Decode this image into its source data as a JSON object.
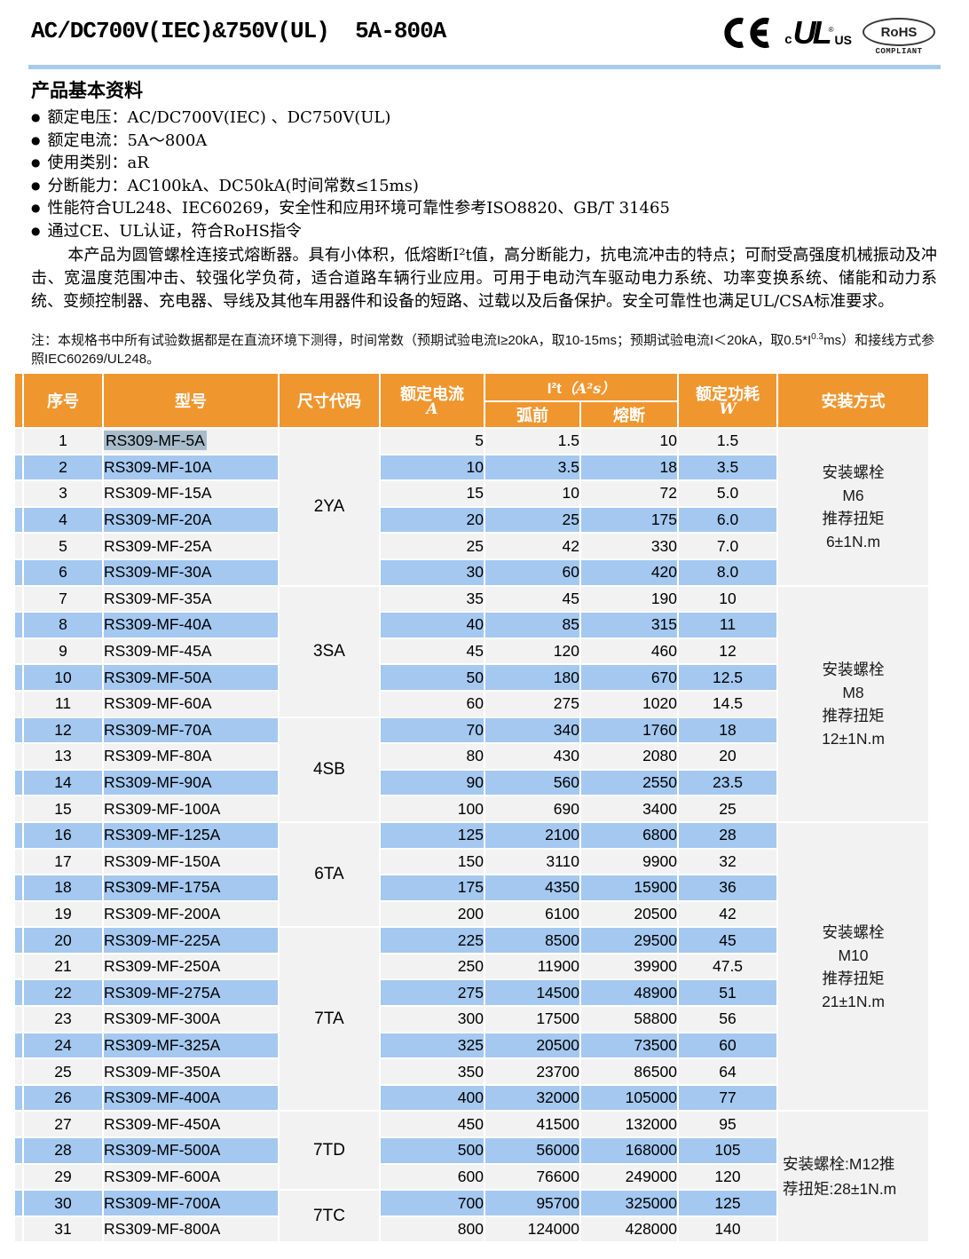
{
  "colors": {
    "header_orange": "#F0962F",
    "row_blue": "#A4C8F0",
    "row_gray": "#F2F2F2",
    "divider_blue": "#A9CBEA",
    "selection_gray_blue": "#A9BCCB"
  },
  "page": {
    "title": "AC/DC700V(IEC)&750V(UL)  5A-800A",
    "logos": {
      "ce": "CE",
      "ul_c": "c",
      "ul_mark": "UL",
      "ul_reg": "®",
      "ul_us": "US",
      "rohs": "RoHS",
      "rohs_compliant": "COMPLIANT"
    }
  },
  "section": {
    "heading": "产品基本资料",
    "bullet_glyph": "●",
    "bullets": [
      "额定电压：AC/DC700V(IEC) 、DC750V(UL)",
      "额定电流：5A～800A",
      "使用类别：aR",
      "分断能力：AC100kA、DC50kA(时间常数≤15ms)",
      "性能符合UL248、IEC60269，安全性和应用环境可靠性参考ISO8820、GB/T 31465",
      "通过CE、UL认证，符合RoHS指令"
    ],
    "paragraph": "本产品为圆管螺栓连接式熔断器。具有小体积，低熔断I²t值，高分断能力，抗电流冲击的特点；可耐受高强度机械振动及冲击、宽温度范围冲击、较强化学负荷，适合道路车辆行业应用。可用于电动汽车驱动电力系统、功率变换系统、储能和动力系统、变频控制器、充电器、导线及其他车用器件和设备的短路、过载以及后备保护。安全可靠性也满足UL/CSA标准要求。",
    "note": {
      "part1": "注：本规格书中所有试验数据都是在直流环境下测得，时间常数（预期试验电流I≥20kA，取10-15ms；预期试验电流I＜20kA，取0.5*I",
      "sup": "0.3",
      "part2": "ms）和接线方式参照IEC60269/UL248。"
    }
  },
  "table": {
    "headers": {
      "no": "序号",
      "model": "型号",
      "size_code": "尺寸代码",
      "rated_current": "额定电流",
      "rated_current_unit": "A",
      "i2t_main": "I²t",
      "i2t_unit": "（A²s）",
      "prearc": "弧前",
      "melt": "熔断",
      "power": "额定功耗",
      "power_unit": "W",
      "mount": "安装方式"
    },
    "rows": [
      {
        "no": "1",
        "model": "RS309-MF-5A",
        "current": "5",
        "prearc": "1.5",
        "melt": "10",
        "power": "1.5",
        "selected": true
      },
      {
        "no": "2",
        "model": "RS309-MF-10A",
        "current": "10",
        "prearc": "3.5",
        "melt": "18",
        "power": "3.5"
      },
      {
        "no": "3",
        "model": "RS309-MF-15A",
        "current": "15",
        "prearc": "10",
        "melt": "72",
        "power": "5.0"
      },
      {
        "no": "4",
        "model": "RS309-MF-20A",
        "current": "20",
        "prearc": "25",
        "melt": "175",
        "power": "6.0"
      },
      {
        "no": "5",
        "model": "RS309-MF-25A",
        "current": "25",
        "prearc": "42",
        "melt": "330",
        "power": "7.0"
      },
      {
        "no": "6",
        "model": "RS309-MF-30A",
        "current": "30",
        "prearc": "60",
        "melt": "420",
        "power": "8.0"
      },
      {
        "no": "7",
        "model": "RS309-MF-35A",
        "current": "35",
        "prearc": "45",
        "melt": "190",
        "power": "10"
      },
      {
        "no": "8",
        "model": "RS309-MF-40A",
        "current": "40",
        "prearc": "85",
        "melt": "315",
        "power": "11"
      },
      {
        "no": "9",
        "model": "RS309-MF-45A",
        "current": "45",
        "prearc": "120",
        "melt": "460",
        "power": "12"
      },
      {
        "no": "10",
        "model": "RS309-MF-50A",
        "current": "50",
        "prearc": "180",
        "melt": "670",
        "power": "12.5"
      },
      {
        "no": "11",
        "model": "RS309-MF-60A",
        "current": "60",
        "prearc": "275",
        "melt": "1020",
        "power": "14.5"
      },
      {
        "no": "12",
        "model": "RS309-MF-70A",
        "current": "70",
        "prearc": "340",
        "melt": "1760",
        "power": "18"
      },
      {
        "no": "13",
        "model": "RS309-MF-80A",
        "current": "80",
        "prearc": "430",
        "melt": "2080",
        "power": "20"
      },
      {
        "no": "14",
        "model": "RS309-MF-90A",
        "current": "90",
        "prearc": "560",
        "melt": "2550",
        "power": "23.5"
      },
      {
        "no": "15",
        "model": "RS309-MF-100A",
        "current": "100",
        "prearc": "690",
        "melt": "3400",
        "power": "25"
      },
      {
        "no": "16",
        "model": "RS309-MF-125A",
        "current": "125",
        "prearc": "2100",
        "melt": "6800",
        "power": "28"
      },
      {
        "no": "17",
        "model": "RS309-MF-150A",
        "current": "150",
        "prearc": "3110",
        "melt": "9900",
        "power": "32"
      },
      {
        "no": "18",
        "model": "RS309-MF-175A",
        "current": "175",
        "prearc": "4350",
        "melt": "15900",
        "power": "36"
      },
      {
        "no": "19",
        "model": "RS309-MF-200A",
        "current": "200",
        "prearc": "6100",
        "melt": "20500",
        "power": "42"
      },
      {
        "no": "20",
        "model": "RS309-MF-225A",
        "current": "225",
        "prearc": "8500",
        "melt": "29500",
        "power": "45"
      },
      {
        "no": "21",
        "model": "RS309-MF-250A",
        "current": "250",
        "prearc": "11900",
        "melt": "39900",
        "power": "47.5"
      },
      {
        "no": "22",
        "model": "RS309-MF-275A",
        "current": "275",
        "prearc": "14500",
        "melt": "48900",
        "power": "51"
      },
      {
        "no": "23",
        "model": "RS309-MF-300A",
        "current": "300",
        "prearc": "17500",
        "melt": "58800",
        "power": "56"
      },
      {
        "no": "24",
        "model": "RS309-MF-325A",
        "current": "325",
        "prearc": "20500",
        "melt": "73500",
        "power": "60"
      },
      {
        "no": "25",
        "model": "RS309-MF-350A",
        "current": "350",
        "prearc": "23700",
        "melt": "86500",
        "power": "64"
      },
      {
        "no": "26",
        "model": "RS309-MF-400A",
        "current": "400",
        "prearc": "32000",
        "melt": "105000",
        "power": "77"
      },
      {
        "no": "27",
        "model": "RS309-MF-450A",
        "current": "450",
        "prearc": "41500",
        "melt": "132000",
        "power": "95"
      },
      {
        "no": "28",
        "model": "RS309-MF-500A",
        "current": "500",
        "prearc": "56000",
        "melt": "168000",
        "power": "105"
      },
      {
        "no": "29",
        "model": "RS309-MF-600A",
        "current": "600",
        "prearc": "76600",
        "melt": "249000",
        "power": "120"
      },
      {
        "no": "30",
        "model": "RS309-MF-700A",
        "current": "700",
        "prearc": "95700",
        "melt": "325000",
        "power": "125"
      },
      {
        "no": "31",
        "model": "RS309-MF-800A",
        "current": "800",
        "prearc": "124000",
        "melt": "428000",
        "power": "140"
      }
    ],
    "size_groups": [
      {
        "code": "2YA",
        "start": 1,
        "span": 6
      },
      {
        "code": "3SA",
        "start": 7,
        "span": 5
      },
      {
        "code": "4SB",
        "start": 12,
        "span": 4
      },
      {
        "code": "6TA",
        "start": 16,
        "span": 4
      },
      {
        "code": "7TA",
        "start": 20,
        "span": 7
      },
      {
        "code": "7TD",
        "start": 27,
        "span": 3
      },
      {
        "code": "7TC",
        "start": 30,
        "span": 2
      }
    ],
    "mount_groups": [
      {
        "start": 1,
        "span": 6,
        "wrap": false,
        "lines": [
          "安装螺栓",
          "M6",
          "推荐扭矩",
          "6±1N.m"
        ]
      },
      {
        "start": 7,
        "span": 9,
        "wrap": false,
        "lines": [
          "安装螺栓",
          "M8",
          "推荐扭矩",
          "12±1N.m"
        ]
      },
      {
        "start": 16,
        "span": 11,
        "wrap": false,
        "lines": [
          "安装螺栓",
          "M10",
          "推荐扭矩",
          "21±1N.m"
        ]
      },
      {
        "start": 27,
        "span": 5,
        "wrap": true,
        "lines": [
          "安装螺栓:M12推",
          "荐扭矩:28±1N.m"
        ]
      }
    ]
  }
}
